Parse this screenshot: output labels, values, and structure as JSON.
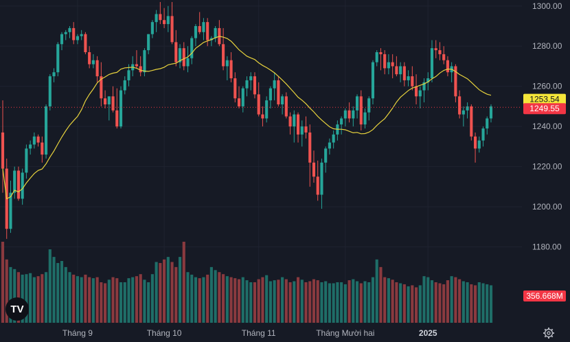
{
  "logo": "TV",
  "settings_icon": "gear-icon",
  "colors": {
    "background": "#161a25",
    "up": "#26a69a",
    "down": "#ef5350",
    "ma": "#e8d33d",
    "ma_tag": "#f5e63a",
    "price_tag": "#f23645",
    "grid": "#1f2330",
    "text": "#b2b5be"
  },
  "chart_data": {
    "type": "candlestick",
    "title": "",
    "y_axis": {
      "range": [
        1173,
        1303
      ],
      "ticks": [
        1180,
        1200,
        1220,
        1240,
        1260,
        1280,
        1300
      ],
      "tick_labels": [
        "1180.00",
        "1200.00",
        "1220.00",
        "1240.00",
        "1260.00",
        "1280.00",
        "1300.00"
      ]
    },
    "x_axis": {
      "labels": [
        {
          "text": "Tháng 9",
          "index": 19
        },
        {
          "text": "Tháng 10",
          "index": 41
        },
        {
          "text": "Tháng 11",
          "index": 65
        },
        {
          "text": "Tháng Mười hai",
          "index": 87
        },
        {
          "text": "2025",
          "index": 108,
          "bold": true
        }
      ]
    },
    "last_price": "1249.55",
    "ma_value": "1253.54",
    "volume_value": "356.668M",
    "moving_average_line": true,
    "candles": [
      [
        1237,
        1253,
        1207,
        1219
      ],
      [
        1219,
        1224,
        1184,
        1189
      ],
      [
        1189,
        1213,
        1187,
        1207
      ],
      [
        1207,
        1220,
        1204,
        1218
      ],
      [
        1218,
        1220,
        1203,
        1204
      ],
      [
        1204,
        1219,
        1201,
        1217
      ],
      [
        1217,
        1231,
        1214,
        1229
      ],
      [
        1229,
        1233,
        1226,
        1231
      ],
      [
        1231,
        1237,
        1229,
        1235
      ],
      [
        1235,
        1236,
        1230,
        1232
      ],
      [
        1232,
        1235,
        1222,
        1226
      ],
      [
        1226,
        1251,
        1224,
        1250
      ],
      [
        1250,
        1266,
        1248,
        1265
      ],
      [
        1265,
        1269,
        1262,
        1267
      ],
      [
        1267,
        1282,
        1265,
        1281
      ],
      [
        1281,
        1287,
        1278,
        1286
      ],
      [
        1286,
        1288,
        1283,
        1287
      ],
      [
        1287,
        1290,
        1284,
        1289
      ],
      [
        1289,
        1292,
        1281,
        1283
      ],
      [
        1283,
        1286,
        1281,
        1285
      ],
      [
        1285,
        1288,
        1283,
        1286
      ],
      [
        1286,
        1287,
        1276,
        1277
      ],
      [
        1277,
        1280,
        1269,
        1271
      ],
      [
        1271,
        1276,
        1269,
        1273
      ],
      [
        1273,
        1275,
        1262,
        1265
      ],
      [
        1265,
        1272,
        1250,
        1254
      ],
      [
        1254,
        1258,
        1249,
        1251
      ],
      [
        1251,
        1255,
        1243,
        1255
      ],
      [
        1255,
        1260,
        1247,
        1248
      ],
      [
        1248,
        1259,
        1239,
        1240
      ],
      [
        1240,
        1260,
        1239,
        1258
      ],
      [
        1258,
        1265,
        1256,
        1263
      ],
      [
        1263,
        1271,
        1260,
        1268
      ],
      [
        1268,
        1275,
        1265,
        1271
      ],
      [
        1271,
        1278,
        1269,
        1270
      ],
      [
        1270,
        1275,
        1265,
        1267
      ],
      [
        1267,
        1279,
        1265,
        1278
      ],
      [
        1278,
        1286,
        1276,
        1286
      ],
      [
        1286,
        1293,
        1284,
        1292
      ],
      [
        1292,
        1298,
        1287,
        1296
      ],
      [
        1296,
        1302,
        1291,
        1293
      ],
      [
        1293,
        1299,
        1289,
        1291
      ],
      [
        1291,
        1300,
        1287,
        1295
      ],
      [
        1295,
        1302,
        1281,
        1282
      ],
      [
        1282,
        1288,
        1270,
        1272
      ],
      [
        1272,
        1281,
        1269,
        1279
      ],
      [
        1279,
        1282,
        1268,
        1270
      ],
      [
        1270,
        1280,
        1267,
        1274
      ],
      [
        1274,
        1285,
        1271,
        1284
      ],
      [
        1284,
        1291,
        1280,
        1290
      ],
      [
        1290,
        1297,
        1286,
        1287
      ],
      [
        1287,
        1294,
        1283,
        1292
      ],
      [
        1292,
        1294,
        1280,
        1283
      ],
      [
        1283,
        1285,
        1280,
        1284
      ],
      [
        1284,
        1290,
        1282,
        1289
      ],
      [
        1289,
        1293,
        1280,
        1281
      ],
      [
        1281,
        1289,
        1268,
        1270
      ],
      [
        1270,
        1275,
        1263,
        1273
      ],
      [
        1273,
        1277,
        1262,
        1264
      ],
      [
        1264,
        1267,
        1252,
        1254
      ],
      [
        1254,
        1260,
        1249,
        1250
      ],
      [
        1250,
        1260,
        1247,
        1259
      ],
      [
        1259,
        1265,
        1255,
        1263
      ],
      [
        1263,
        1267,
        1258,
        1265
      ],
      [
        1265,
        1267,
        1254,
        1256
      ],
      [
        1256,
        1262,
        1245,
        1246
      ],
      [
        1246,
        1250,
        1240,
        1244
      ],
      [
        1244,
        1255,
        1242,
        1253
      ],
      [
        1253,
        1260,
        1249,
        1259
      ],
      [
        1259,
        1267,
        1253,
        1263
      ],
      [
        1263,
        1265,
        1250,
        1251
      ],
      [
        1251,
        1256,
        1246,
        1255
      ],
      [
        1255,
        1257,
        1244,
        1245
      ],
      [
        1245,
        1247,
        1236,
        1240
      ],
      [
        1240,
        1248,
        1232,
        1246
      ],
      [
        1246,
        1247,
        1232,
        1236
      ],
      [
        1236,
        1243,
        1230,
        1240
      ],
      [
        1240,
        1245,
        1234,
        1237
      ],
      [
        1237,
        1241,
        1210,
        1222
      ],
      [
        1222,
        1228,
        1212,
        1215
      ],
      [
        1215,
        1223,
        1203,
        1206
      ],
      [
        1206,
        1224,
        1199,
        1222
      ],
      [
        1222,
        1230,
        1217,
        1229
      ],
      [
        1229,
        1234,
        1226,
        1232
      ],
      [
        1232,
        1238,
        1229,
        1236
      ],
      [
        1236,
        1243,
        1233,
        1241
      ],
      [
        1241,
        1245,
        1236,
        1244
      ],
      [
        1244,
        1249,
        1240,
        1248
      ],
      [
        1248,
        1252,
        1242,
        1244
      ],
      [
        1244,
        1250,
        1240,
        1248
      ],
      [
        1248,
        1256,
        1244,
        1255
      ],
      [
        1255,
        1258,
        1238,
        1241
      ],
      [
        1241,
        1249,
        1239,
        1247
      ],
      [
        1247,
        1255,
        1243,
        1254
      ],
      [
        1254,
        1273,
        1251,
        1272
      ],
      [
        1272,
        1278,
        1270,
        1277
      ],
      [
        1277,
        1279,
        1268,
        1276
      ],
      [
        1276,
        1278,
        1266,
        1269
      ],
      [
        1269,
        1276,
        1266,
        1272
      ],
      [
        1272,
        1276,
        1264,
        1270
      ],
      [
        1270,
        1275,
        1265,
        1266
      ],
      [
        1266,
        1272,
        1262,
        1270
      ],
      [
        1270,
        1272,
        1260,
        1263
      ],
      [
        1263,
        1268,
        1260,
        1265
      ],
      [
        1265,
        1270,
        1258,
        1260
      ],
      [
        1260,
        1266,
        1251,
        1255
      ],
      [
        1255,
        1260,
        1249,
        1258
      ],
      [
        1258,
        1264,
        1252,
        1262
      ],
      [
        1262,
        1267,
        1258,
        1264
      ],
      [
        1264,
        1283,
        1262,
        1279
      ],
      [
        1279,
        1283,
        1274,
        1278
      ],
      [
        1278,
        1282,
        1273,
        1276
      ],
      [
        1276,
        1280,
        1271,
        1273
      ],
      [
        1273,
        1275,
        1265,
        1267
      ],
      [
        1267,
        1272,
        1262,
        1270
      ],
      [
        1270,
        1271,
        1252,
        1255
      ],
      [
        1255,
        1258,
        1244,
        1246
      ],
      [
        1246,
        1250,
        1240,
        1248
      ],
      [
        1248,
        1252,
        1244,
        1250
      ],
      [
        1250,
        1251,
        1233,
        1235
      ],
      [
        1235,
        1237,
        1222,
        1229
      ],
      [
        1229,
        1235,
        1227,
        1233
      ],
      [
        1233,
        1240,
        1230,
        1239
      ],
      [
        1239,
        1245,
        1236,
        1244
      ],
      [
        1244,
        1251,
        1242,
        1250
      ]
    ],
    "volume": [
      160,
      125,
      110,
      106,
      100,
      95,
      96,
      98,
      90,
      92,
      96,
      100,
      145,
      130,
      118,
      122,
      110,
      100,
      95,
      92,
      90,
      95,
      90,
      88,
      90,
      80,
      78,
      85,
      90,
      88,
      80,
      80,
      88,
      90,
      92,
      96,
      85,
      80,
      96,
      120,
      118,
      125,
      130,
      120,
      110,
      130,
      160,
      100,
      95,
      90,
      88,
      90,
      95,
      110,
      104,
      100,
      96,
      92,
      90,
      88,
      86,
      90,
      84,
      80,
      80,
      86,
      90,
      94,
      82,
      84,
      85,
      90,
      86,
      80,
      82,
      90,
      85,
      80,
      82,
      86,
      84,
      80,
      82,
      78,
      78,
      80,
      80,
      76,
      84,
      86,
      82,
      78,
      82,
      80,
      90,
      125,
      110,
      90,
      88,
      85,
      80,
      78,
      76,
      72,
      74,
      70,
      74,
      92,
      90,
      84,
      80,
      78,
      76,
      84,
      92,
      90,
      86,
      82,
      80,
      76,
      74,
      80,
      78,
      76,
      74
    ]
  }
}
